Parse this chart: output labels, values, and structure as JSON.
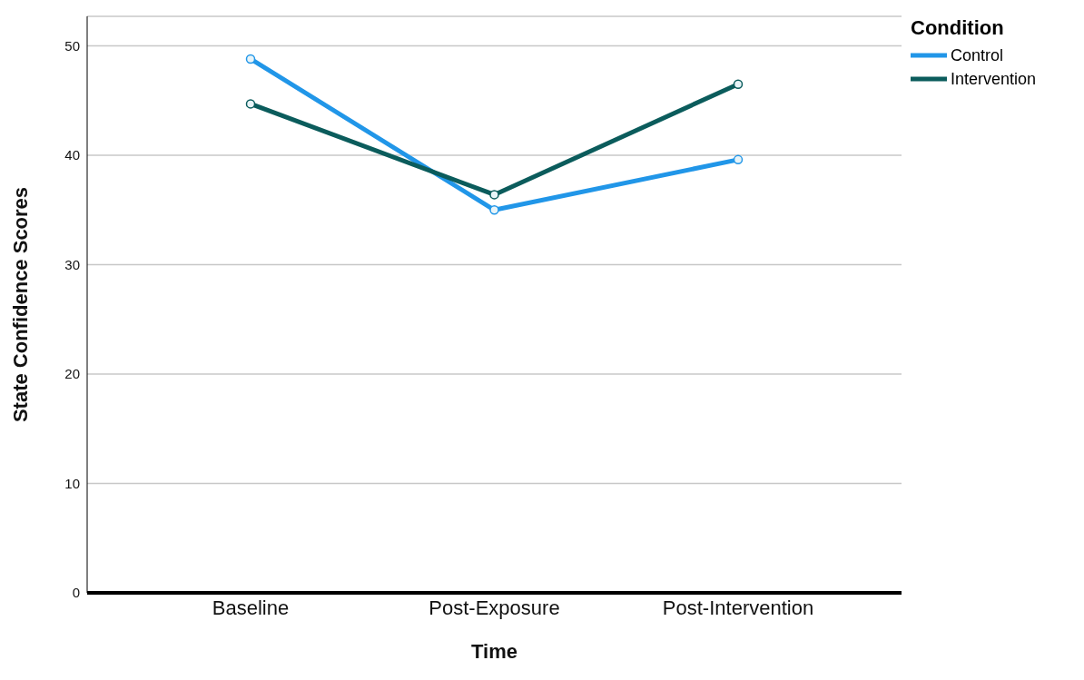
{
  "chart_data": {
    "type": "line",
    "xlabel": "Time",
    "ylabel": "State Confidence Scores",
    "legend_title": "Condition",
    "categories": [
      "Baseline",
      "Post-Exposure",
      "Post-Intervention"
    ],
    "series": [
      {
        "name": "Control",
        "color": "#2196e8",
        "values": [
          48.8,
          35.0,
          39.6
        ]
      },
      {
        "name": "Intervention",
        "color": "#0b5c5c",
        "values": [
          44.7,
          36.4,
          46.5
        ]
      }
    ],
    "ylim": [
      0,
      52.7
    ],
    "yticks": [
      0,
      10,
      20,
      30,
      40,
      50
    ],
    "grid": "y",
    "legend": "top right",
    "marker": "circle",
    "line_style": "solid"
  }
}
